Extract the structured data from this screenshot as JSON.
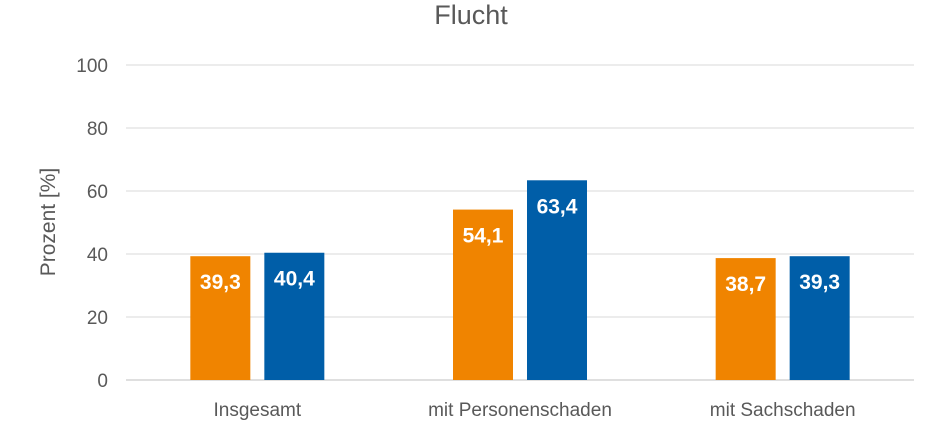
{
  "chart_data": {
    "type": "bar",
    "title": "Flucht",
    "xlabel": "",
    "ylabel": "Prozent [%]",
    "ylim": [
      0,
      100
    ],
    "yticks": [
      0,
      20,
      40,
      60,
      80,
      100
    ],
    "grid": true,
    "categories": [
      "Insgesamt",
      "mit Personenschaden",
      "mit Sachschaden"
    ],
    "series": [
      {
        "color": "#F08400",
        "values": [
          39.3,
          54.1,
          38.7
        ],
        "labels": [
          "39,3",
          "54,1",
          "38,7"
        ]
      },
      {
        "color": "#005EA8",
        "values": [
          40.4,
          63.4,
          39.3
        ],
        "labels": [
          "40,4",
          "63,4",
          "39,3"
        ]
      }
    ]
  }
}
